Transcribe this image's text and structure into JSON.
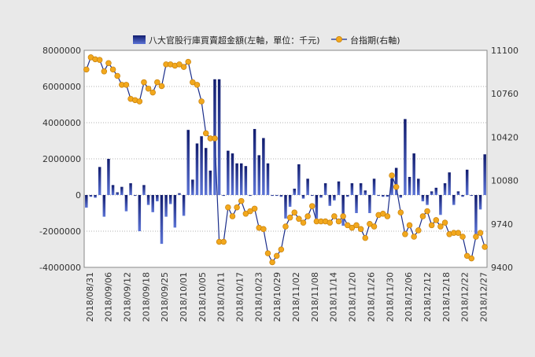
{
  "chart_data": {
    "type": "bar+line",
    "legend": {
      "position": "top",
      "items": [
        {
          "label": "八大官股行庫買賣超金額(左軸，單位：千元)",
          "marker": "bar",
          "color": "#1a2d8a"
        },
        {
          "label": "台指期(右軸)",
          "marker": "line-dot",
          "color": "#1a2d8a",
          "dot_color": "#f2a81d"
        }
      ]
    },
    "left_axis": {
      "min": -4000000,
      "max": 8000000,
      "ticks": [
        "8000000",
        "6000000",
        "4000000",
        "2000000",
        "0",
        "-2000000",
        "-4000000"
      ]
    },
    "right_axis": {
      "min": 9400,
      "max": 11100,
      "ticks": [
        "11100",
        "10760",
        "10420",
        "10080",
        "9740",
        "9400"
      ]
    },
    "x_tick_labels": [
      "2018/08/31",
      "2018/09/06",
      "2018/09/12",
      "2018/09/18",
      "2018/09/25",
      "2018/10/01",
      "2018/10/05",
      "2018/10/11",
      "2018/10/17",
      "2018/10/23",
      "2018/10/29",
      "2018/11/02",
      "2018/11/08",
      "2018/11/14",
      "2018/11/20",
      "2018/11/26",
      "2018/11/30",
      "2018/12/06",
      "2018/12/12",
      "2018/12/18",
      "2018/12/22",
      "2018/12/27"
    ],
    "grid": "horizontal dotted",
    "series": [
      {
        "name": "八大官股行庫買賣超金額(左軸，單位：千元)",
        "type": "bar",
        "color": "#1a2d8a",
        "values": [
          -700000,
          -100000,
          -150000,
          1550000,
          -1200000,
          2000000,
          550000,
          150000,
          450000,
          -900000,
          650000,
          -50000,
          -2000000,
          550000,
          -550000,
          -950000,
          -350000,
          -2700000,
          -1200000,
          -500000,
          -1800000,
          100000,
          -1150000,
          3600000,
          850000,
          2850000,
          3250000,
          2600000,
          1350000,
          6400000,
          6400000,
          -50000,
          2450000,
          2300000,
          1750000,
          1750000,
          1600000,
          -50000,
          3650000,
          2200000,
          3150000,
          1750000,
          -50000,
          -50000,
          -100000,
          -1300000,
          -650000,
          350000,
          1700000,
          -200000,
          900000,
          -50000,
          -1300000,
          -150000,
          650000,
          -600000,
          -300000,
          750000,
          -1700000,
          -100000,
          650000,
          -1000000,
          650000,
          250000,
          -1000000,
          900000,
          -50000,
          -100000,
          -100000,
          900000,
          1500000,
          -150000,
          4200000,
          1000000,
          2300000,
          900000,
          -350000,
          -550000,
          200000,
          400000,
          -1100000,
          650000,
          1250000,
          -550000,
          200000,
          -100000,
          1400000,
          -50000,
          -2150000,
          -800000,
          2250000
        ]
      },
      {
        "name": "台指期(右軸)",
        "type": "line",
        "color": "#1a2d8a",
        "dot_color": "#f2a81d",
        "values": [
          10950,
          11045,
          11030,
          11025,
          10935,
          11000,
          10950,
          10900,
          10830,
          10830,
          10720,
          10710,
          10700,
          10850,
          10800,
          10770,
          10850,
          10820,
          10990,
          10990,
          10980,
          10990,
          10970,
          11010,
          10850,
          10830,
          10700,
          10450,
          10410,
          10410,
          9600,
          9600,
          9870,
          9800,
          9870,
          9920,
          9820,
          9840,
          9860,
          9710,
          9700,
          9510,
          9440,
          9490,
          9540,
          9720,
          9790,
          9830,
          9780,
          9750,
          9800,
          9880,
          9760,
          9760,
          9760,
          9750,
          9800,
          9760,
          9800,
          9730,
          9710,
          9730,
          9700,
          9630,
          9740,
          9720,
          9810,
          9820,
          9800,
          10120,
          10030,
          9830,
          9660,
          9730,
          9640,
          9690,
          9800,
          9840,
          9730,
          9770,
          9720,
          9750,
          9660,
          9670,
          9670,
          9640,
          9490,
          9470,
          9640,
          9670,
          9560
        ]
      }
    ]
  }
}
